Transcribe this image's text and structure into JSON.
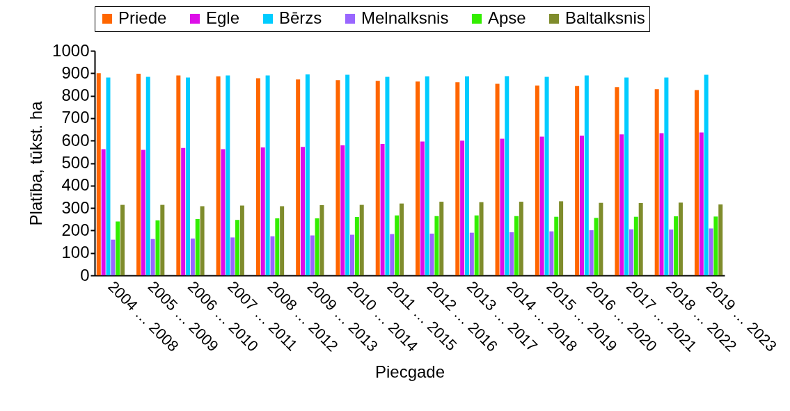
{
  "chart_data": {
    "type": "bar",
    "xlabel": "Piecgade",
    "ylabel": "Platība, tūkst. ha",
    "categories": [
      "2004 … 2008",
      "2005 … 2009",
      "2006 … 2010",
      "2007 … 2011",
      "2008 … 2012",
      "2009 … 2013",
      "2010 … 2014",
      "2011 … 2015",
      "2012 … 2016",
      "2013 … 2017",
      "2014 … 2018",
      "2015 … 2019",
      "2016 … 2020",
      "2017 … 2021",
      "2018 … 2022",
      "2019 … 2023"
    ],
    "series": [
      {
        "name": "Priede",
        "color": "#ff6600",
        "values": [
          900,
          898,
          890,
          886,
          878,
          872,
          869,
          866,
          863,
          860,
          853,
          845,
          843,
          838,
          829,
          825
        ]
      },
      {
        "name": "Egle",
        "color": "#dd0ee8",
        "values": [
          562,
          559,
          567,
          562,
          570,
          572,
          579,
          585,
          596,
          600,
          608,
          618,
          622,
          628,
          633,
          636
        ]
      },
      {
        "name": "Bērzs",
        "color": "#00ccff",
        "values": [
          881,
          884,
          881,
          890,
          890,
          895,
          893,
          884,
          886,
          886,
          887,
          884,
          890,
          881,
          881,
          893
        ]
      },
      {
        "name": "Melnalksnis",
        "color": "#9966ff",
        "values": [
          159,
          162,
          164,
          169,
          174,
          178,
          181,
          184,
          186,
          190,
          192,
          196,
          201,
          205,
          204,
          209
        ]
      },
      {
        "name": "Apse",
        "color": "#33ee00",
        "values": [
          240,
          245,
          251,
          247,
          254,
          254,
          260,
          267,
          264,
          267,
          264,
          261,
          256,
          261,
          263,
          262
        ]
      },
      {
        "name": "Baltalksnis",
        "color": "#7f8c2c",
        "values": [
          314,
          314,
          308,
          311,
          308,
          313,
          314,
          320,
          328,
          326,
          328,
          330,
          323,
          322,
          324,
          316
        ]
      }
    ],
    "ylim": [
      0,
      1000
    ],
    "yticks": [
      0,
      100,
      200,
      300,
      400,
      500,
      600,
      700,
      800,
      900,
      1000
    ],
    "grid": false,
    "legend": "top"
  }
}
